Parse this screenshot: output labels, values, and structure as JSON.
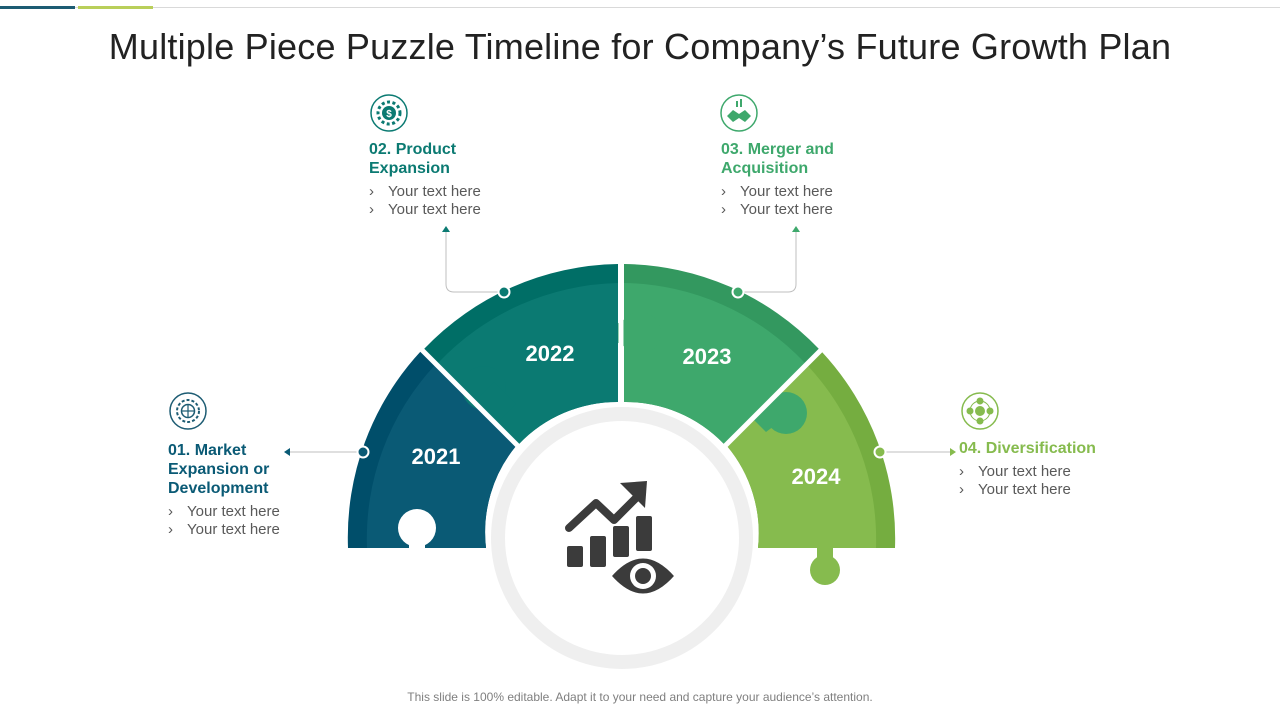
{
  "title": "Multiple Piece Puzzle Timeline for Company’s Future Growth Plan",
  "footer": "This slide is 100% editable. Adapt it to your need and capture your audience’s attention.",
  "center_icon": "growth-chart-eye-icon",
  "colors": {
    "stage1": "#0a5a75",
    "stage2": "#0b7a72",
    "stage3": "#3ea86c",
    "stage4": "#86bb4e",
    "stage1_outer": "#004e6a",
    "stage2_outer": "#006e66",
    "stage3_outer": "#33985f",
    "stage4_outer": "#75ad40",
    "icon_dark": "#3b3b3b",
    "ring": "#efefef"
  },
  "stages": [
    {
      "number": "01.",
      "title": "Market Expansion or Development",
      "heading_lines": [
        "01. Market",
        "Expansion or",
        "Development"
      ],
      "year": "2021",
      "icon": "globe-gear-icon",
      "bullets": [
        "Your text here",
        "Your text here"
      ]
    },
    {
      "number": "02.",
      "title": "Product Expansion",
      "heading_lines": [
        "02. Product",
        "Expansion"
      ],
      "year": "2022",
      "icon": "gear-dollar-icon",
      "bullets": [
        "Your text here",
        "Your text here"
      ]
    },
    {
      "number": "03.",
      "title": "Merger and Acquisition",
      "heading_lines": [
        "03. Merger and",
        "Acquisition"
      ],
      "year": "2023",
      "icon": "handshake-icon",
      "bullets": [
        "Your text here",
        "Your text here"
      ]
    },
    {
      "number": "04.",
      "title": "Diversification",
      "heading_lines": [
        "04. Diversification"
      ],
      "year": "2024",
      "icon": "diversification-network-icon",
      "bullets": [
        "Your text here",
        "Your text here"
      ]
    }
  ]
}
